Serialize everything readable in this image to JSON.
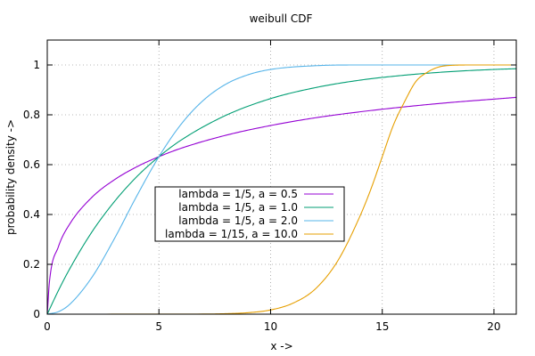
{
  "chart_data": {
    "type": "line",
    "title": "weibull CDF",
    "xlabel": "x ->",
    "ylabel": "probability density ->",
    "xlim": [
      0,
      21
    ],
    "ylim": [
      0,
      1.1
    ],
    "xticks": [
      0,
      5,
      10,
      15,
      20
    ],
    "yticks": [
      0,
      0.2,
      0.4,
      0.6,
      0.8,
      1
    ],
    "grid": true,
    "legend_position": "center",
    "series": [
      {
        "name": "lambda = 1/5, a = 0.5",
        "color": "#9400d3",
        "x": [
          0,
          0.1,
          0.5,
          1,
          2,
          3,
          4,
          5,
          6,
          8,
          10,
          12,
          14,
          16,
          18,
          20,
          21
        ],
        "y": [
          0,
          0.132,
          0.271,
          0.361,
          0.469,
          0.539,
          0.591,
          0.632,
          0.666,
          0.718,
          0.757,
          0.788,
          0.812,
          0.832,
          0.849,
          0.863,
          0.87
        ]
      },
      {
        "name": "lambda = 1/5, a = 1.0",
        "color": "#009e73",
        "x": [
          0,
          0.5,
          1,
          2,
          3,
          4,
          5,
          6,
          8,
          10,
          12,
          14,
          16,
          18,
          20,
          21
        ],
        "y": [
          0,
          0.095,
          0.181,
          0.33,
          0.451,
          0.551,
          0.632,
          0.699,
          0.798,
          0.865,
          0.909,
          0.939,
          0.959,
          0.973,
          0.982,
          0.985
        ]
      },
      {
        "name": "lambda = 1/5, a = 2.0",
        "color": "#56b4e9",
        "x": [
          0,
          0.5,
          1,
          2,
          3,
          4,
          5,
          6,
          7,
          8,
          9,
          10,
          12,
          14,
          16,
          18,
          20,
          21
        ],
        "y": [
          0,
          0.01,
          0.039,
          0.148,
          0.302,
          0.473,
          0.632,
          0.763,
          0.859,
          0.923,
          0.961,
          0.982,
          0.997,
          1.0,
          1.0,
          1.0,
          1.0,
          1.0
        ]
      },
      {
        "name": "lambda = 1/15, a = 10.0",
        "color": "#e69f00",
        "x": [
          0,
          7,
          8,
          9,
          10,
          11,
          12,
          13,
          14,
          14.5,
          15,
          15.5,
          16,
          16.5,
          17,
          17.5,
          18,
          19,
          20,
          21
        ],
        "y": [
          0,
          0.0005,
          0.002,
          0.006,
          0.017,
          0.044,
          0.101,
          0.213,
          0.393,
          0.504,
          0.632,
          0.759,
          0.853,
          0.933,
          0.97,
          0.991,
          0.998,
          1.0,
          1.0,
          1.0
        ]
      }
    ]
  }
}
